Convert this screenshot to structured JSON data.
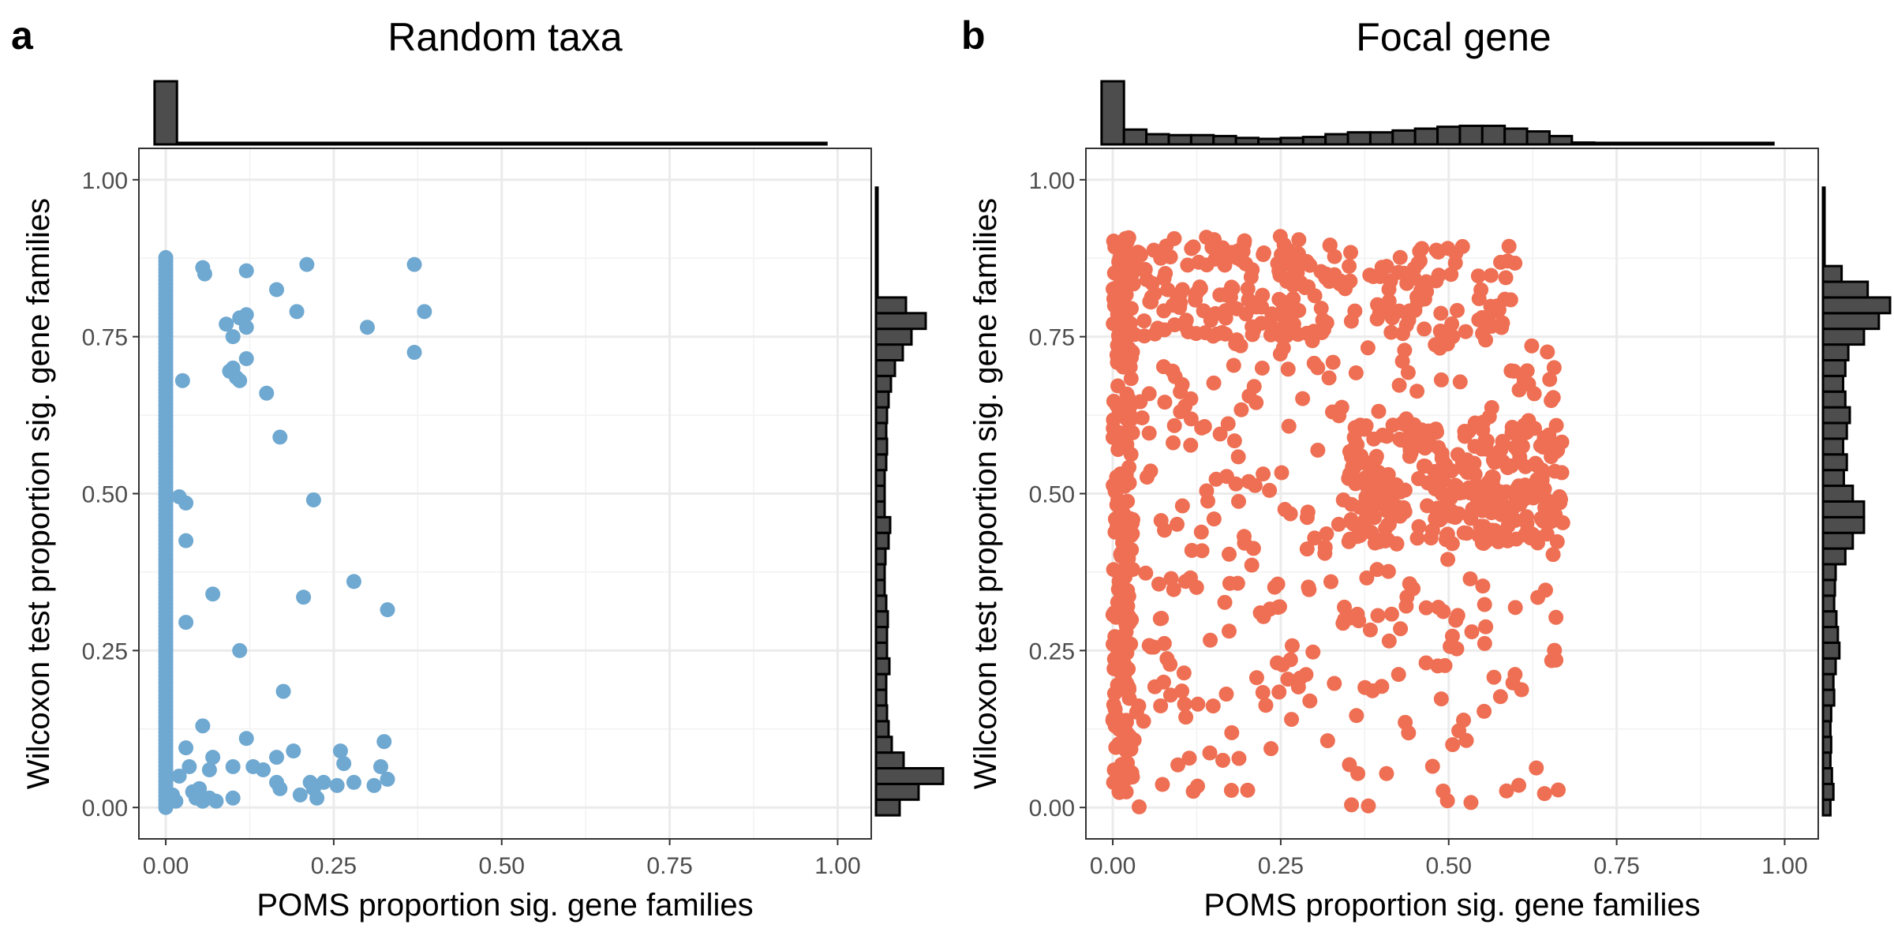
{
  "colors": {
    "panel_a_points": "#6FA8D0",
    "panel_b_points": "#EE6F53",
    "histogram_fill": "#4D4D4D"
  },
  "panels": [
    {
      "letter": "a",
      "title": "Random taxa",
      "xlabel": "POMS proportion sig. gene families",
      "ylabel": "Wilcoxon test proportion sig. gene families"
    },
    {
      "letter": "b",
      "title": "Focal gene",
      "xlabel": "POMS proportion sig. gene families",
      "ylabel": "Wilcoxon test proportion sig. gene families"
    }
  ],
  "chart_data": [
    {
      "type": "scatter",
      "title": "Random taxa",
      "xlabel": "POMS proportion sig. gene families",
      "ylabel": "Wilcoxon test proportion sig. gene families",
      "xlim": [
        -0.04,
        1.05
      ],
      "ylim": [
        -0.05,
        1.05
      ],
      "x_ticks": [
        "0.00",
        "0.25",
        "0.50",
        "0.75",
        "1.00"
      ],
      "y_ticks": [
        "0.00",
        "0.25",
        "0.50",
        "0.75",
        "1.00"
      ],
      "grid": true,
      "marginal_histograms": true,
      "x_column_zero": {
        "x": 0.0,
        "y_min": 0.0,
        "y_max": 0.88
      },
      "points": [
        [
          0.055,
          0.86
        ],
        [
          0.058,
          0.85
        ],
        [
          0.12,
          0.855
        ],
        [
          0.21,
          0.865
        ],
        [
          0.37,
          0.865
        ],
        [
          0.165,
          0.825
        ],
        [
          0.12,
          0.785
        ],
        [
          0.11,
          0.78
        ],
        [
          0.09,
          0.77
        ],
        [
          0.195,
          0.79
        ],
        [
          0.1,
          0.75
        ],
        [
          0.12,
          0.765
        ],
        [
          0.3,
          0.765
        ],
        [
          0.385,
          0.79
        ],
        [
          0.37,
          0.725
        ],
        [
          0.12,
          0.715
        ],
        [
          0.1,
          0.7
        ],
        [
          0.095,
          0.695
        ],
        [
          0.105,
          0.685
        ],
        [
          0.11,
          0.68
        ],
        [
          0.025,
          0.68
        ],
        [
          0.15,
          0.66
        ],
        [
          0.17,
          0.59
        ],
        [
          0.02,
          0.495
        ],
        [
          0.03,
          0.485
        ],
        [
          0.22,
          0.49
        ],
        [
          0.03,
          0.425
        ],
        [
          0.07,
          0.34
        ],
        [
          0.28,
          0.36
        ],
        [
          0.205,
          0.335
        ],
        [
          0.33,
          0.315
        ],
        [
          0.03,
          0.295
        ],
        [
          0.11,
          0.25
        ],
        [
          0.175,
          0.185
        ],
        [
          0.055,
          0.13
        ],
        [
          0.12,
          0.11
        ],
        [
          0.325,
          0.105
        ],
        [
          0.03,
          0.095
        ],
        [
          0.07,
          0.08
        ],
        [
          0.19,
          0.09
        ],
        [
          0.165,
          0.08
        ],
        [
          0.26,
          0.09
        ],
        [
          0.035,
          0.065
        ],
        [
          0.065,
          0.06
        ],
        [
          0.13,
          0.065
        ],
        [
          0.145,
          0.06
        ],
        [
          0.265,
          0.07
        ],
        [
          0.32,
          0.065
        ],
        [
          0.33,
          0.045
        ],
        [
          0.235,
          0.04
        ],
        [
          0.255,
          0.035
        ],
        [
          0.28,
          0.04
        ],
        [
          0.31,
          0.035
        ],
        [
          0.165,
          0.04
        ],
        [
          0.17,
          0.03
        ],
        [
          0.215,
          0.04
        ],
        [
          0.02,
          0.05
        ],
        [
          0.04,
          0.025
        ],
        [
          0.05,
          0.03
        ],
        [
          0.045,
          0.015
        ],
        [
          0.055,
          0.01
        ],
        [
          0.065,
          0.015
        ],
        [
          0.075,
          0.01
        ],
        [
          0.1,
          0.015
        ],
        [
          0.2,
          0.02
        ],
        [
          0.225,
          0.015
        ],
        [
          0.01,
          0.02
        ],
        [
          0.015,
          0.01
        ],
        [
          0.22,
          0.03
        ],
        [
          0.1,
          0.065
        ]
      ],
      "hist_x": [
        0.97,
        0.006,
        0.004,
        0.003,
        0.003,
        0.002,
        0.002,
        0.002,
        0.002,
        0.001,
        0.001,
        0.001,
        0.001,
        0.001,
        0.001,
        0.001,
        0.001,
        0.001,
        0.001,
        0.001,
        0.001,
        0.001,
        0.001,
        0.001,
        0.001,
        0.001,
        0.001,
        0.001,
        0.001,
        0.001
      ],
      "hist_y": [
        0.3,
        0.54,
        0.85,
        0.35,
        0.2,
        0.16,
        0.14,
        0.13,
        0.13,
        0.17,
        0.14,
        0.14,
        0.15,
        0.13,
        0.11,
        0.11,
        0.12,
        0.16,
        0.18,
        0.11,
        0.11,
        0.11,
        0.13,
        0.14,
        0.13,
        0.14,
        0.16,
        0.19,
        0.24,
        0.34,
        0.45,
        0.63,
        0.38,
        0.001,
        0.001,
        0.001,
        0.001,
        0.001,
        0.001,
        0.001
      ]
    },
    {
      "type": "scatter",
      "title": "Focal gene",
      "xlabel": "POMS proportion sig. gene families",
      "ylabel": "Wilcoxon test proportion sig. gene families",
      "xlim": [
        -0.04,
        1.05
      ],
      "ylim": [
        -0.05,
        1.05
      ],
      "x_ticks": [
        "0.00",
        "0.25",
        "0.50",
        "0.75",
        "1.00"
      ],
      "y_ticks": [
        "0.00",
        "0.25",
        "0.50",
        "0.75",
        "1.00"
      ],
      "grid": true,
      "marginal_histograms": true,
      "clusters": [
        {
          "x": [
            0.0,
            0.03
          ],
          "y": [
            0.02,
            0.91
          ],
          "n": 220
        },
        {
          "x": [
            0.0,
            0.28
          ],
          "y": [
            0.75,
            0.91
          ],
          "n": 140
        },
        {
          "x": [
            0.25,
            0.6
          ],
          "y": [
            0.75,
            0.9
          ],
          "n": 120
        },
        {
          "x": [
            0.35,
            0.67
          ],
          "y": [
            0.42,
            0.62
          ],
          "n": 260
        },
        {
          "x": [
            0.0,
            0.67
          ],
          "y": [
            0.3,
            0.76
          ],
          "n": 220
        },
        {
          "x": [
            0.0,
            0.67
          ],
          "y": [
            0.0,
            0.3
          ],
          "n": 110
        }
      ],
      "hist_x": [
        0.68,
        0.16,
        0.11,
        0.1,
        0.1,
        0.09,
        0.07,
        0.06,
        0.07,
        0.08,
        0.11,
        0.13,
        0.13,
        0.15,
        0.17,
        0.19,
        0.2,
        0.2,
        0.17,
        0.14,
        0.09,
        0.02,
        0.01,
        0.005,
        0.003,
        0.002,
        0.001,
        0.001,
        0.001,
        0.001
      ],
      "hist_y": [
        0.1,
        0.14,
        0.12,
        0.1,
        0.11,
        0.1,
        0.11,
        0.15,
        0.14,
        0.17,
        0.22,
        0.2,
        0.18,
        0.15,
        0.16,
        0.17,
        0.3,
        0.4,
        0.55,
        0.55,
        0.4,
        0.28,
        0.32,
        0.27,
        0.32,
        0.36,
        0.3,
        0.27,
        0.3,
        0.34,
        0.55,
        0.75,
        0.9,
        0.6,
        0.25,
        0.001,
        0.001,
        0.001,
        0.001,
        0.001
      ]
    }
  ]
}
